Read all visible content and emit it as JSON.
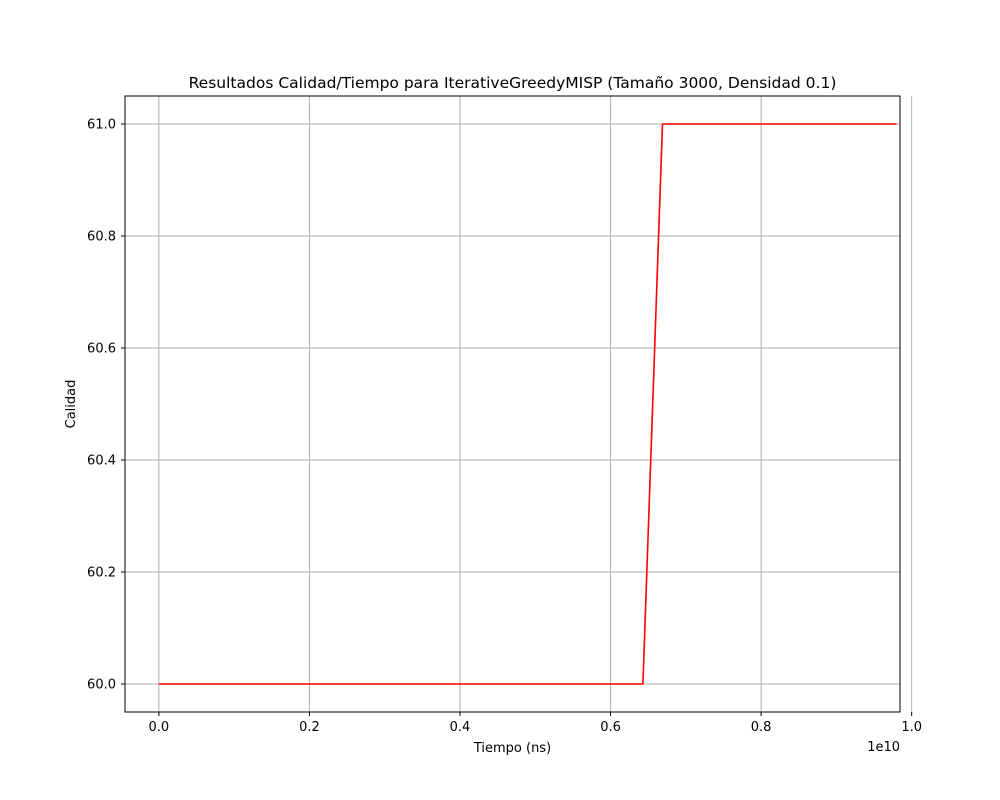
{
  "chart_data": {
    "type": "line",
    "title": "Resultados Calidad/Tiempo para IterativeGreedyMISP (Tamaño 3000, Densidad 0.1)",
    "xlabel": "Tiempo (ns)",
    "ylabel": "Calidad",
    "x_offset_text": "1e10",
    "xlim": [
      -0.045,
      0.9845
    ],
    "ylim": [
      59.95,
      61.05
    ],
    "xticks": [
      0.0,
      0.2,
      0.4,
      0.6,
      0.8,
      1.0
    ],
    "xtick_labels": [
      "0.0",
      "0.2",
      "0.4",
      "0.6",
      "0.8",
      "1.0"
    ],
    "yticks": [
      60.0,
      60.2,
      60.4,
      60.6,
      60.8,
      61.0
    ],
    "ytick_labels": [
      "60.0",
      "60.2",
      "60.4",
      "60.6",
      "60.8",
      "61.0"
    ],
    "grid": true,
    "series": [
      {
        "color": "#ff0000",
        "x": [
          0.0,
          0.643,
          0.669,
          0.98
        ],
        "y": [
          60.0,
          60.0,
          61.0,
          61.0
        ]
      }
    ]
  }
}
